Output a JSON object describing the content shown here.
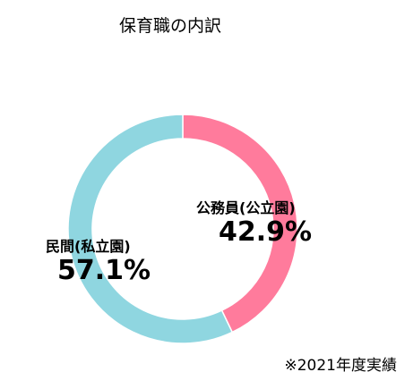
{
  "chart_data": {
    "type": "pie",
    "title": "保育職の内訳",
    "donut": true,
    "slices": [
      {
        "label": "公務員(公立園)",
        "value": 42.9,
        "value_label": "42.9%",
        "color": "#ff7b9c"
      },
      {
        "label": "民間(私立園)",
        "value": 57.1,
        "value_label": "57.1%",
        "color": "#8fd6e0"
      }
    ],
    "note": "※2021年度実績"
  }
}
